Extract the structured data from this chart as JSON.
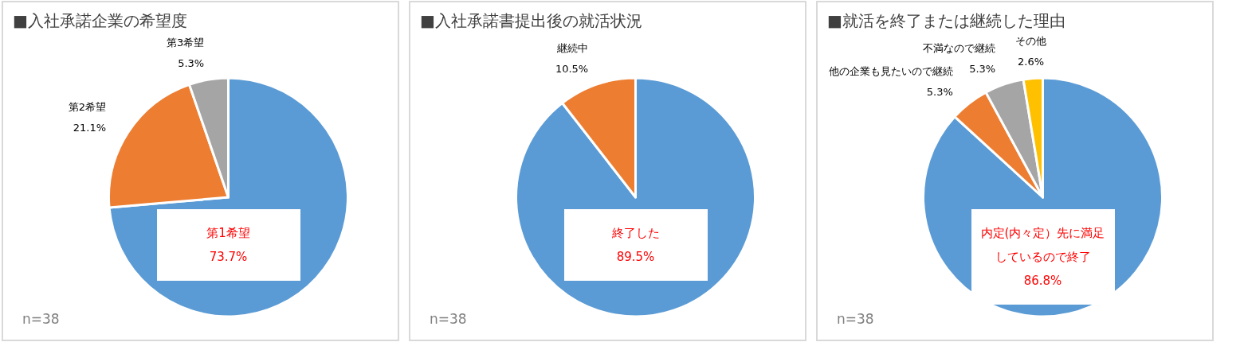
{
  "chart_data": [
    {
      "type": "pie",
      "title": "■入社承諾企業の希望度",
      "categories": [
        "第1希望",
        "第2希望",
        "第3希望"
      ],
      "values": [
        73.7,
        21.1,
        5.3
      ],
      "colors": [
        "#5b9bd5",
        "#ed7d31",
        "#a5a5a5"
      ],
      "value_labels": [
        "73.7%",
        "21.1%",
        "5.3%"
      ],
      "annotations": [
        "n=38"
      ]
    },
    {
      "type": "pie",
      "title": "■入社承諾書提出後の就活状況",
      "categories": [
        "終了した",
        "継続中"
      ],
      "values": [
        89.5,
        10.5
      ],
      "colors": [
        "#5b9bd5",
        "#ed7d31"
      ],
      "value_labels": [
        "89.5%",
        "10.5%"
      ],
      "annotations": [
        "n=38"
      ]
    },
    {
      "type": "pie",
      "title": "■就活を終了または継続した理由",
      "categories": [
        "内定(内々定）先に満足しているので終了",
        "他の企業も見たいので継続",
        "不満なので継続",
        "その他"
      ],
      "values": [
        86.8,
        5.3,
        5.3,
        2.6
      ],
      "colors": [
        "#5b9bd5",
        "#ed7d31",
        "#a5a5a5",
        "#ffc000"
      ],
      "value_labels": [
        "86.8%",
        "5.3%",
        "5.3%",
        "2.6%"
      ],
      "annotations": [
        "n=38"
      ]
    }
  ]
}
